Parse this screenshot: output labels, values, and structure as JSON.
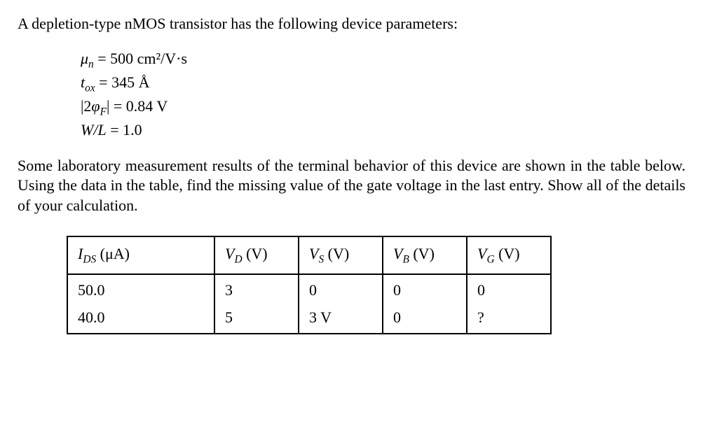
{
  "intro": "A depletion-type nMOS transistor has the following device parameters:",
  "params": {
    "mu_var": "μ",
    "mu_sub": "n",
    "mu_val": " = 500 cm²/V·s",
    "tox_var": "t",
    "tox_sub": "ox",
    "tox_val": " = 345 Å",
    "phi_pre": "|2",
    "phi_var": "φ",
    "phi_sub": "F",
    "phi_post": "|",
    "phi_val": " = 0.84 V",
    "wl_var": "W/L",
    "wl_val": " = 1.0"
  },
  "description": "Some laboratory measurement results of the terminal behavior of this device are shown in the table below. Using the data in the table, find the missing value of the gate voltage in the last entry. Show all of the details of your calculation.",
  "table": {
    "headers": {
      "ids_var": "I",
      "ids_sub": "DS",
      "ids_unit": " (μA)",
      "vd_var": "V",
      "vd_sub": "D",
      "vd_unit": " (V)",
      "vs_var": "V",
      "vs_sub": "S",
      "vs_unit": " (V)",
      "vb_var": "V",
      "vb_sub": "B",
      "vb_unit": " (V)",
      "vg_var": "V",
      "vg_sub": "G",
      "vg_unit": " (V)"
    },
    "rows": [
      {
        "ids": "50.0",
        "vd": "3",
        "vs": "0",
        "vb": "0",
        "vg": "0"
      },
      {
        "ids": "40.0",
        "vd": "5",
        "vs": "3 V",
        "vb": "0",
        "vg": "?"
      }
    ]
  }
}
